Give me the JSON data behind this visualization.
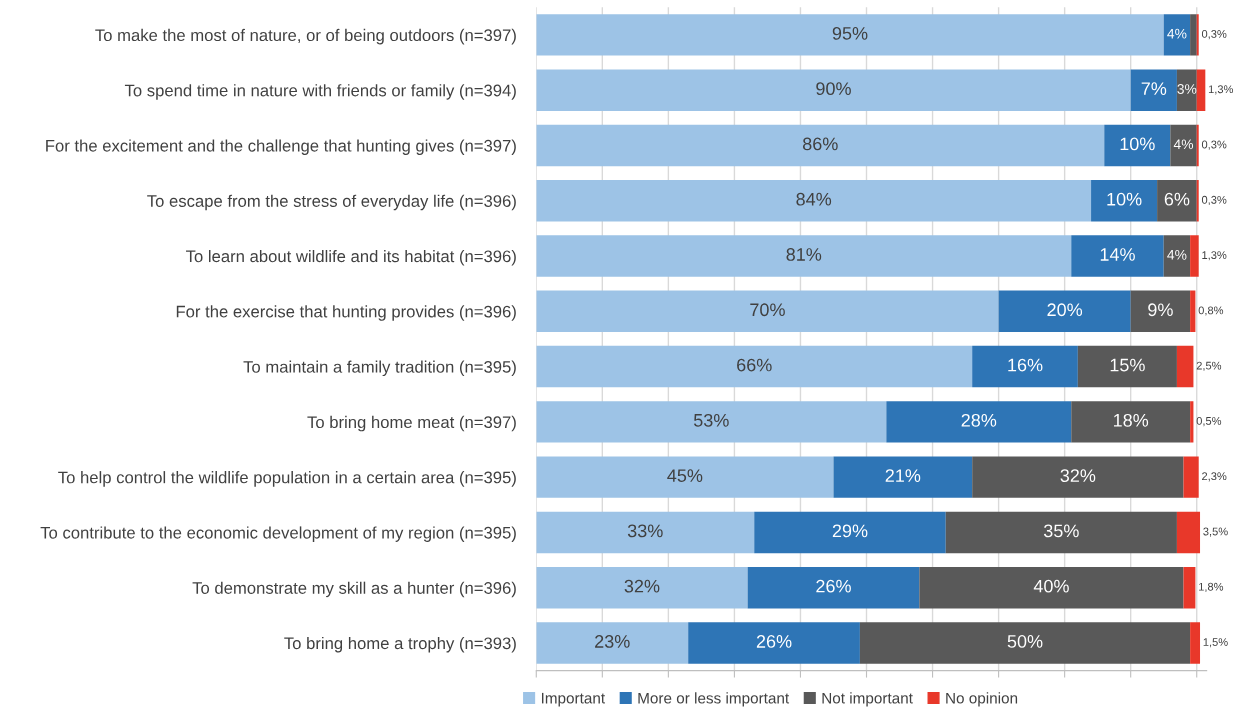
{
  "chart_data": {
    "type": "bar",
    "orientation": "horizontal",
    "stacked": true,
    "legend": "bottom",
    "grid": "x",
    "tick_labels": "y",
    "categories": [
      "To make the most of nature, or of being outdoors (n=397)",
      "To spend time in nature with friends or family (n=394)",
      "For the excitement and the challenge that hunting gives (n=397)",
      "To escape from the stress of everyday life (n=396)",
      "To learn about wildlife and its habitat (n=396)",
      "For the exercise that hunting provides (n=396)",
      "To maintain a family tradition (n=395)",
      "To bring home meat (n=397)",
      "To help control the wildlife population in a certain area (n=395)",
      "To contribute to the economic development of my region (n=395)",
      "To demonstrate my skill as a hunter (n=396)",
      "To bring home a trophy (n=393)"
    ],
    "xlim": [
      0,
      101.5
    ],
    "xticks": [
      {
        "value": 0,
        "label": null
      },
      {
        "value": 10,
        "label": null
      },
      {
        "value": 20,
        "label": null
      },
      {
        "value": 30,
        "label": null
      },
      {
        "value": 40,
        "label": null
      },
      {
        "value": 50,
        "label": null
      },
      {
        "value": 60,
        "label": null
      },
      {
        "value": 70,
        "label": null
      },
      {
        "value": 80,
        "label": null
      },
      {
        "value": 90,
        "label": null
      },
      {
        "value": 100,
        "label": null
      }
    ],
    "series": [
      {
        "name": "Important",
        "color": "#9dc3e6",
        "values": [
          95,
          90,
          86,
          84,
          81,
          70,
          66,
          53,
          45,
          33,
          32,
          23
        ],
        "value_labels": [
          "95%",
          "90%",
          "86%",
          "84%",
          "81%",
          "70%",
          "66%",
          "53%",
          "45%",
          "33%",
          "32%",
          "23%"
        ]
      },
      {
        "name": "More or less important",
        "color": "#2e75b6",
        "values": [
          4,
          7,
          10,
          10,
          14,
          20,
          16,
          28,
          21,
          29,
          26,
          26
        ],
        "value_labels": [
          "4%",
          "7%",
          "10%",
          "10%",
          "14%",
          "20%",
          "16%",
          "28%",
          "21%",
          "29%",
          "26%",
          "26%"
        ]
      },
      {
        "name": "Not important",
        "color": "#595959",
        "values": [
          1,
          3,
          4,
          6,
          4,
          9,
          15,
          18,
          32,
          35,
          40,
          50
        ],
        "value_labels": [
          null,
          "3%",
          "4%",
          "6%",
          "4%",
          "9%",
          "15%",
          "18%",
          "32%",
          "35%",
          "40%",
          "50%"
        ]
      },
      {
        "name": "No opinion",
        "color": "#e8382a",
        "values": [
          0.3,
          1.3,
          0.3,
          0.3,
          1.3,
          0.8,
          2.5,
          0.5,
          2.3,
          3.5,
          1.8,
          1.5
        ],
        "value_labels": [
          "0,3%",
          "1,3%",
          "0,3%",
          "0,3%",
          "1,3%",
          "0,8%",
          "2,5%",
          "0,5%",
          "2,3%",
          "3,5%",
          "1,8%",
          "1,5%"
        ]
      }
    ]
  }
}
